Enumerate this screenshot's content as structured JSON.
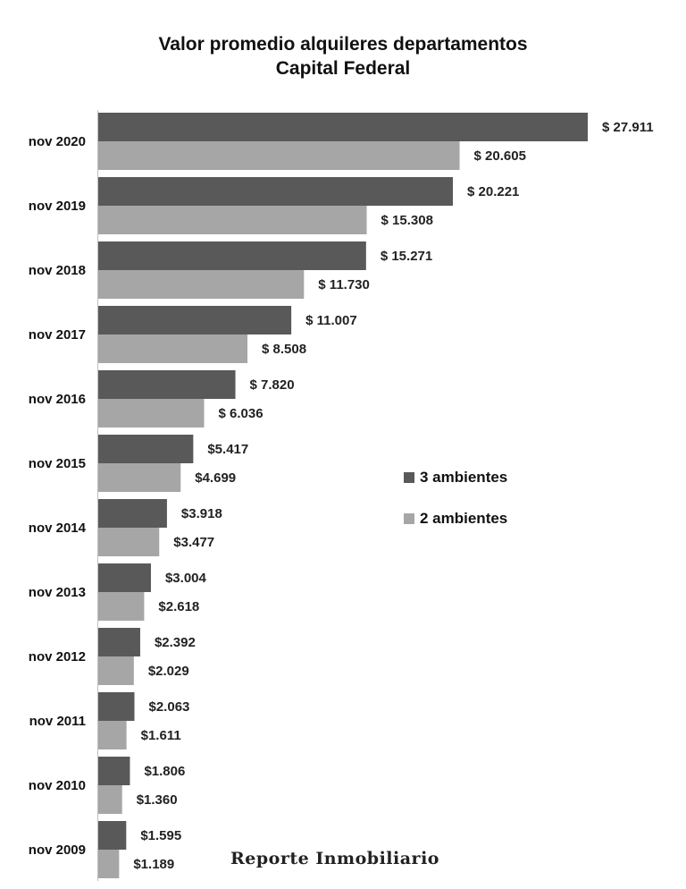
{
  "title_line1": "Valor promedio alquileres departamentos",
  "title_line2": "Capital Federal",
  "watermark": "Reporte Inmobiliario",
  "legend": [
    {
      "label": "3 ambientes",
      "color": "#595959"
    },
    {
      "label": "2 ambientes",
      "color": "#a6a6a6"
    }
  ],
  "chart_data": {
    "type": "bar",
    "orientation": "horizontal",
    "title": "Valor promedio alquileres departamentos Capital Federal",
    "categories": [
      "nov 2020",
      "nov 2019",
      "nov 2018",
      "nov 2017",
      "nov 2016",
      "nov 2015",
      "nov 2014",
      "nov 2013",
      "nov 2012",
      "nov 2011",
      "nov 2010",
      "nov 2009"
    ],
    "series": [
      {
        "name": "3 ambientes",
        "color": "#595959",
        "values": [
          27911,
          20221,
          15271,
          11007,
          7820,
          5417,
          3918,
          3004,
          2392,
          2063,
          1806,
          1595
        ],
        "labels": [
          "$ 27.911",
          "$ 20.221",
          "$ 15.271",
          "$ 11.007",
          "$ 7.820",
          "$5.417",
          "$3.918",
          "$3.004",
          "$2.392",
          "$2.063",
          "$1.806",
          "$1.595"
        ]
      },
      {
        "name": "2 ambientes",
        "color": "#a6a6a6",
        "values": [
          20605,
          15308,
          11730,
          8508,
          6036,
          4699,
          3477,
          2618,
          2029,
          1611,
          1360,
          1189
        ],
        "labels": [
          "$ 20.605",
          "$ 15.308",
          "$ 11.730",
          "$ 8.508",
          "$ 6.036",
          "$4.699",
          "$3.477",
          "$2.618",
          "$2.029",
          "$1.611",
          "$1.360",
          "$1.189"
        ]
      }
    ],
    "xlim": [
      0,
      27911
    ],
    "grid": false,
    "legend_position": "right"
  }
}
